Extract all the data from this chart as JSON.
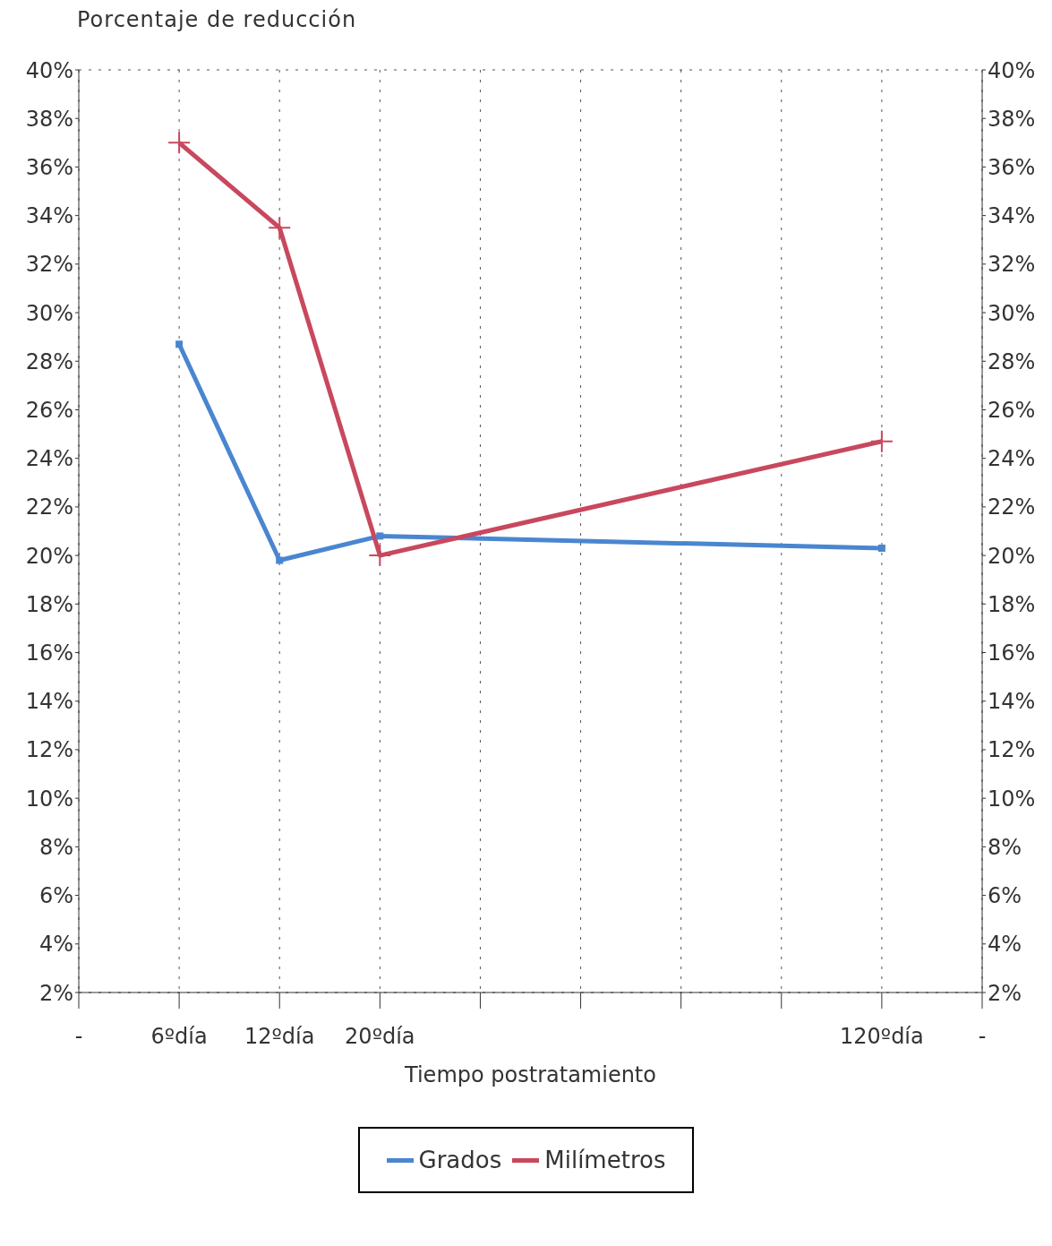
{
  "chart_data": {
    "type": "line",
    "ylabel": "Porcentaje de reducción",
    "xlabel": "Tiempo postratamiento",
    "categories": [
      "-",
      "6ºdía",
      "12ºdía",
      "20ºdía",
      null,
      null,
      null,
      null,
      "120ºdía",
      "-"
    ],
    "series": [
      {
        "name": "Grados",
        "color": "#4a86d0",
        "marker": "square",
        "values": [
          null,
          28.7,
          19.8,
          20.8,
          null,
          null,
          null,
          null,
          20.3,
          null
        ]
      },
      {
        "name": "Milímetros",
        "color": "#c8485e",
        "marker": "cross",
        "values": [
          null,
          37.0,
          33.5,
          20.0,
          null,
          null,
          null,
          null,
          24.7,
          null
        ]
      }
    ],
    "ylim": [
      2,
      40
    ],
    "yticks": [
      {
        "value": 2,
        "label": "2%"
      },
      {
        "value": 4,
        "label": "4%"
      },
      {
        "value": 6,
        "label": "6%"
      },
      {
        "value": 8,
        "label": "8%"
      },
      {
        "value": 10,
        "label": "10%"
      },
      {
        "value": 12,
        "label": "12%"
      },
      {
        "value": 14,
        "label": "14%"
      },
      {
        "value": 16,
        "label": "16%"
      },
      {
        "value": 18,
        "label": "18%"
      },
      {
        "value": 20,
        "label": "20%"
      },
      {
        "value": 22,
        "label": "22%"
      },
      {
        "value": 24,
        "label": "24%"
      },
      {
        "value": 26,
        "label": "26%"
      },
      {
        "value": 28,
        "label": "28%"
      },
      {
        "value": 30,
        "label": "30%"
      },
      {
        "value": 32,
        "label": "32%"
      },
      {
        "value": 34,
        "label": "34%"
      },
      {
        "value": 36,
        "label": "36%"
      },
      {
        "value": 38,
        "label": "38%"
      },
      {
        "value": 40,
        "label": "40%"
      }
    ],
    "y2lim": [
      2,
      40
    ],
    "y2ticks": [
      {
        "value": 2,
        "label": "2%"
      },
      {
        "value": 4,
        "label": "4%"
      },
      {
        "value": 6,
        "label": "6%"
      },
      {
        "value": 8,
        "label": "8%"
      },
      {
        "value": 10,
        "label": "10%"
      },
      {
        "value": 12,
        "label": "12%"
      },
      {
        "value": 14,
        "label": "14%"
      },
      {
        "value": 16,
        "label": "16%"
      },
      {
        "value": 18,
        "label": "18%"
      },
      {
        "value": 20,
        "label": "20%"
      },
      {
        "value": 22,
        "label": "22%"
      },
      {
        "value": 24,
        "label": "24%"
      },
      {
        "value": 26,
        "label": "26%"
      },
      {
        "value": 28,
        "label": "28%"
      },
      {
        "value": 30,
        "label": "30%"
      },
      {
        "value": 32,
        "label": "32%"
      },
      {
        "value": 34,
        "label": "34%"
      },
      {
        "value": 36,
        "label": "36%"
      },
      {
        "value": 38,
        "label": "38%"
      },
      {
        "value": 40,
        "label": "40%"
      }
    ],
    "grid": true,
    "legend": "bottom",
    "line_style": "solid"
  }
}
